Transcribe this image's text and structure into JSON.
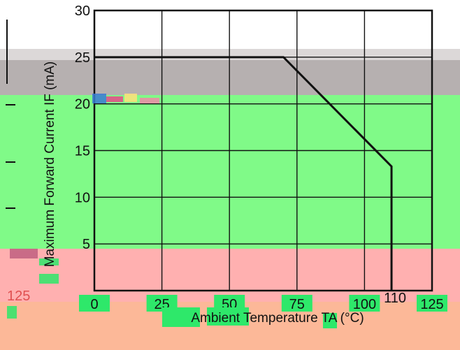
{
  "chart_data": {
    "type": "line",
    "title": "",
    "xlabel": "Ambient Temperature  TA (°C)",
    "ylabel": "Maximum Forward Current  IF (mA)",
    "xlim": [
      0,
      125
    ],
    "ylim": [
      0,
      30
    ],
    "x_ticks": [
      0,
      25,
      50,
      75,
      100,
      125
    ],
    "y_ticks": [
      0,
      5,
      10,
      15,
      20,
      25,
      30
    ],
    "x_tick_labels": [
      "0",
      "25",
      "50",
      "75",
      "100",
      "125"
    ],
    "y_tick_labels": [
      "0",
      "5",
      "10",
      "15",
      "20",
      "25",
      "30"
    ],
    "annotations": [
      {
        "text": "110",
        "x": 110
      },
      {
        "text": "125",
        "x": 125
      }
    ],
    "grid": true,
    "series": [
      {
        "x": [
          0,
          70,
          110,
          110
        ],
        "y": [
          25,
          25,
          13.3,
          0
        ]
      }
    ]
  }
}
